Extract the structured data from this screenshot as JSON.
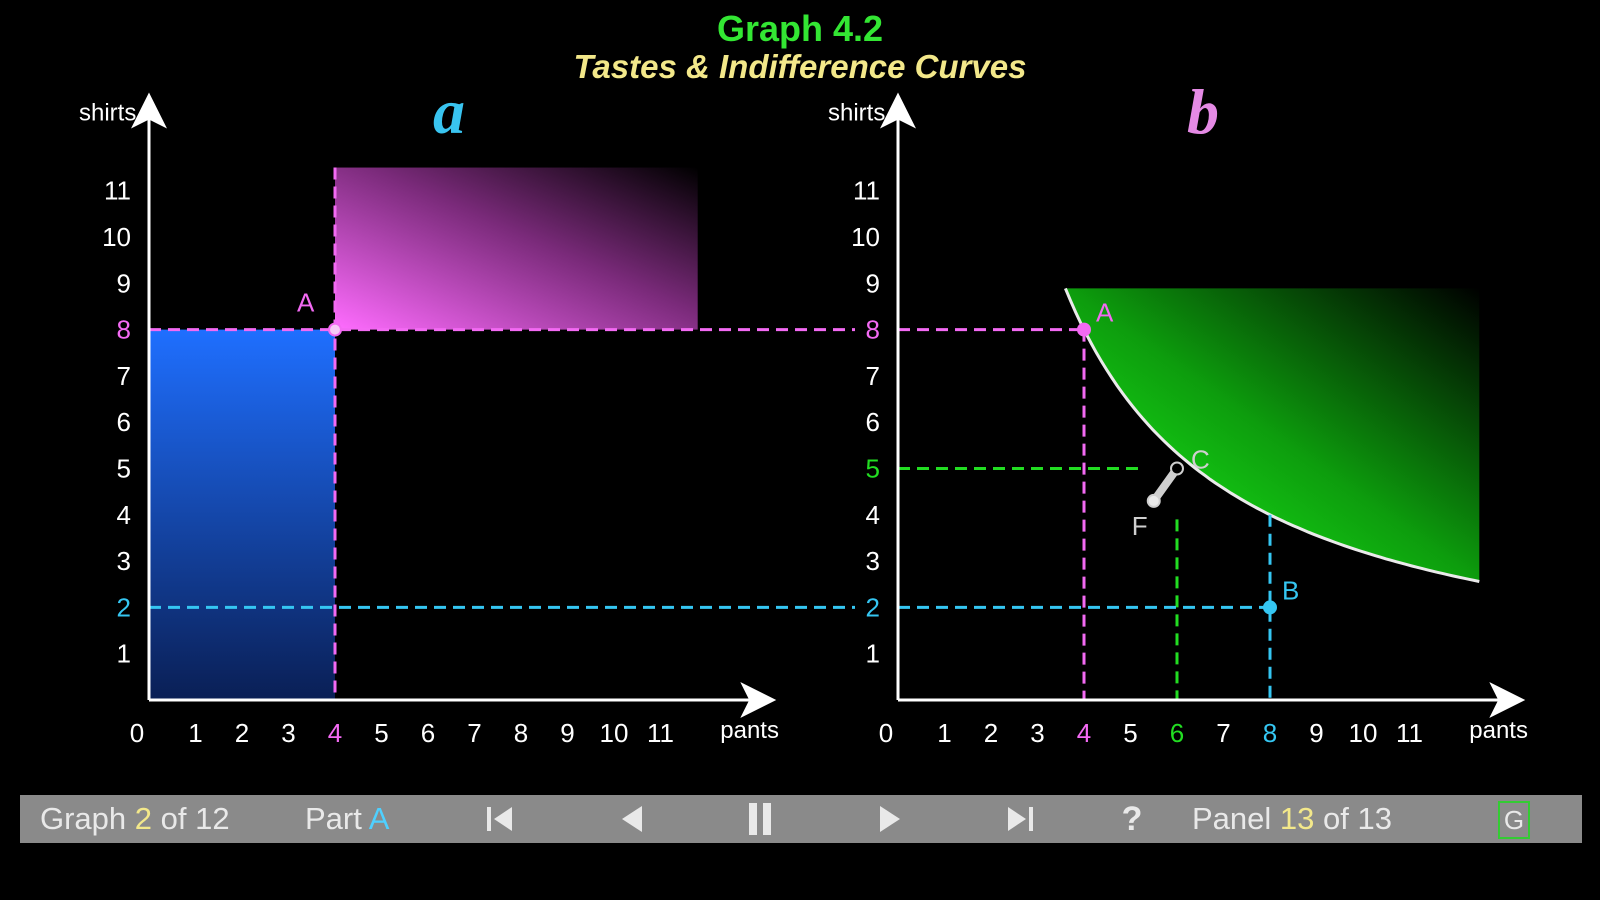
{
  "title": "Graph 4.2",
  "subtitle": "Tastes & Indifference Curves",
  "colors": {
    "background": "#000000",
    "title": "#33e633",
    "subtitle": "#f3e88a",
    "magenta": "#f36af3",
    "cyan": "#35c6f2",
    "green": "#22dd22",
    "blue": "#1f6fff",
    "axis": "#ffffff",
    "control_bar": "#8a8a8a"
  },
  "panel_a": {
    "label": "a",
    "label_color": "#39c4f0",
    "y_axis_label": "shirts",
    "x_axis_label": "pants",
    "x_ticks": [
      "0",
      "1",
      "2",
      "3",
      "4",
      "5",
      "6",
      "7",
      "8",
      "9",
      "10",
      "11"
    ],
    "y_ticks": [
      "1",
      "2",
      "3",
      "4",
      "5",
      "6",
      "7",
      "8",
      "9",
      "10",
      "11"
    ],
    "highlight_x_tick": "4",
    "highlight_y_ticks": {
      "8": "magenta",
      "2": "cyan"
    },
    "point_A": {
      "label": "A",
      "pants": 4,
      "shirts": 8
    },
    "upper_right_region": {
      "from_pants": 4,
      "from_shirts": 8,
      "color": "magenta"
    },
    "lower_left_region": {
      "to_pants": 4,
      "to_shirts": 8,
      "color": "blue"
    },
    "guide_lines": [
      {
        "type": "horizontal",
        "shirts": 8,
        "color": "magenta"
      },
      {
        "type": "vertical",
        "pants": 4,
        "color": "magenta"
      },
      {
        "type": "horizontal",
        "shirts": 2,
        "color": "cyan"
      }
    ]
  },
  "panel_b": {
    "label": "b",
    "label_color": "#e58ae5",
    "y_axis_label": "shirts",
    "x_axis_label": "pants",
    "x_ticks": [
      "0",
      "1",
      "2",
      "3",
      "4",
      "5",
      "6",
      "7",
      "8",
      "9",
      "10",
      "11"
    ],
    "y_ticks": [
      "1",
      "2",
      "3",
      "4",
      "5",
      "6",
      "7",
      "8",
      "9",
      "10",
      "11"
    ],
    "highlight_x_ticks": {
      "4": "magenta",
      "6": "green",
      "8": "cyan"
    },
    "highlight_y_ticks": {
      "8": "magenta",
      "5": "green",
      "2": "cyan"
    },
    "indifference_curve": {
      "pants_times_shirts": 32,
      "from_pants": 3.6,
      "to_pants": 12.5
    },
    "points": [
      {
        "label": "A",
        "pants": 4,
        "shirts": 8,
        "color": "magenta"
      },
      {
        "label": "B",
        "pants": 8,
        "shirts": 2,
        "color": "cyan"
      },
      {
        "label": "C",
        "pants": 6,
        "shirts": 5,
        "color": "gray"
      },
      {
        "label": "F",
        "pants": 5.5,
        "shirts": 4.3,
        "color": "gray"
      }
    ],
    "guide_lines": [
      {
        "type": "horizontal",
        "shirts": 8,
        "color": "magenta"
      },
      {
        "type": "vertical",
        "pants": 4,
        "color": "magenta"
      },
      {
        "type": "horizontal",
        "shirts": 5,
        "color": "green"
      },
      {
        "type": "vertical",
        "pants": 6,
        "color": "green"
      },
      {
        "type": "horizontal",
        "shirts": 2,
        "color": "cyan"
      },
      {
        "type": "vertical",
        "pants": 8,
        "color": "cyan"
      }
    ]
  },
  "controls": {
    "graph_prefix": "Graph",
    "graph_num": "2",
    "graph_total": "of 12",
    "part_prefix": "Part",
    "part_value": "A",
    "panel_prefix": "Panel",
    "panel_num": "13",
    "panel_total": "of 13",
    "help_label": "?",
    "g_label": "G",
    "buttons": [
      "first-icon",
      "previous-icon",
      "pause-icon",
      "next-icon",
      "last-icon"
    ]
  }
}
